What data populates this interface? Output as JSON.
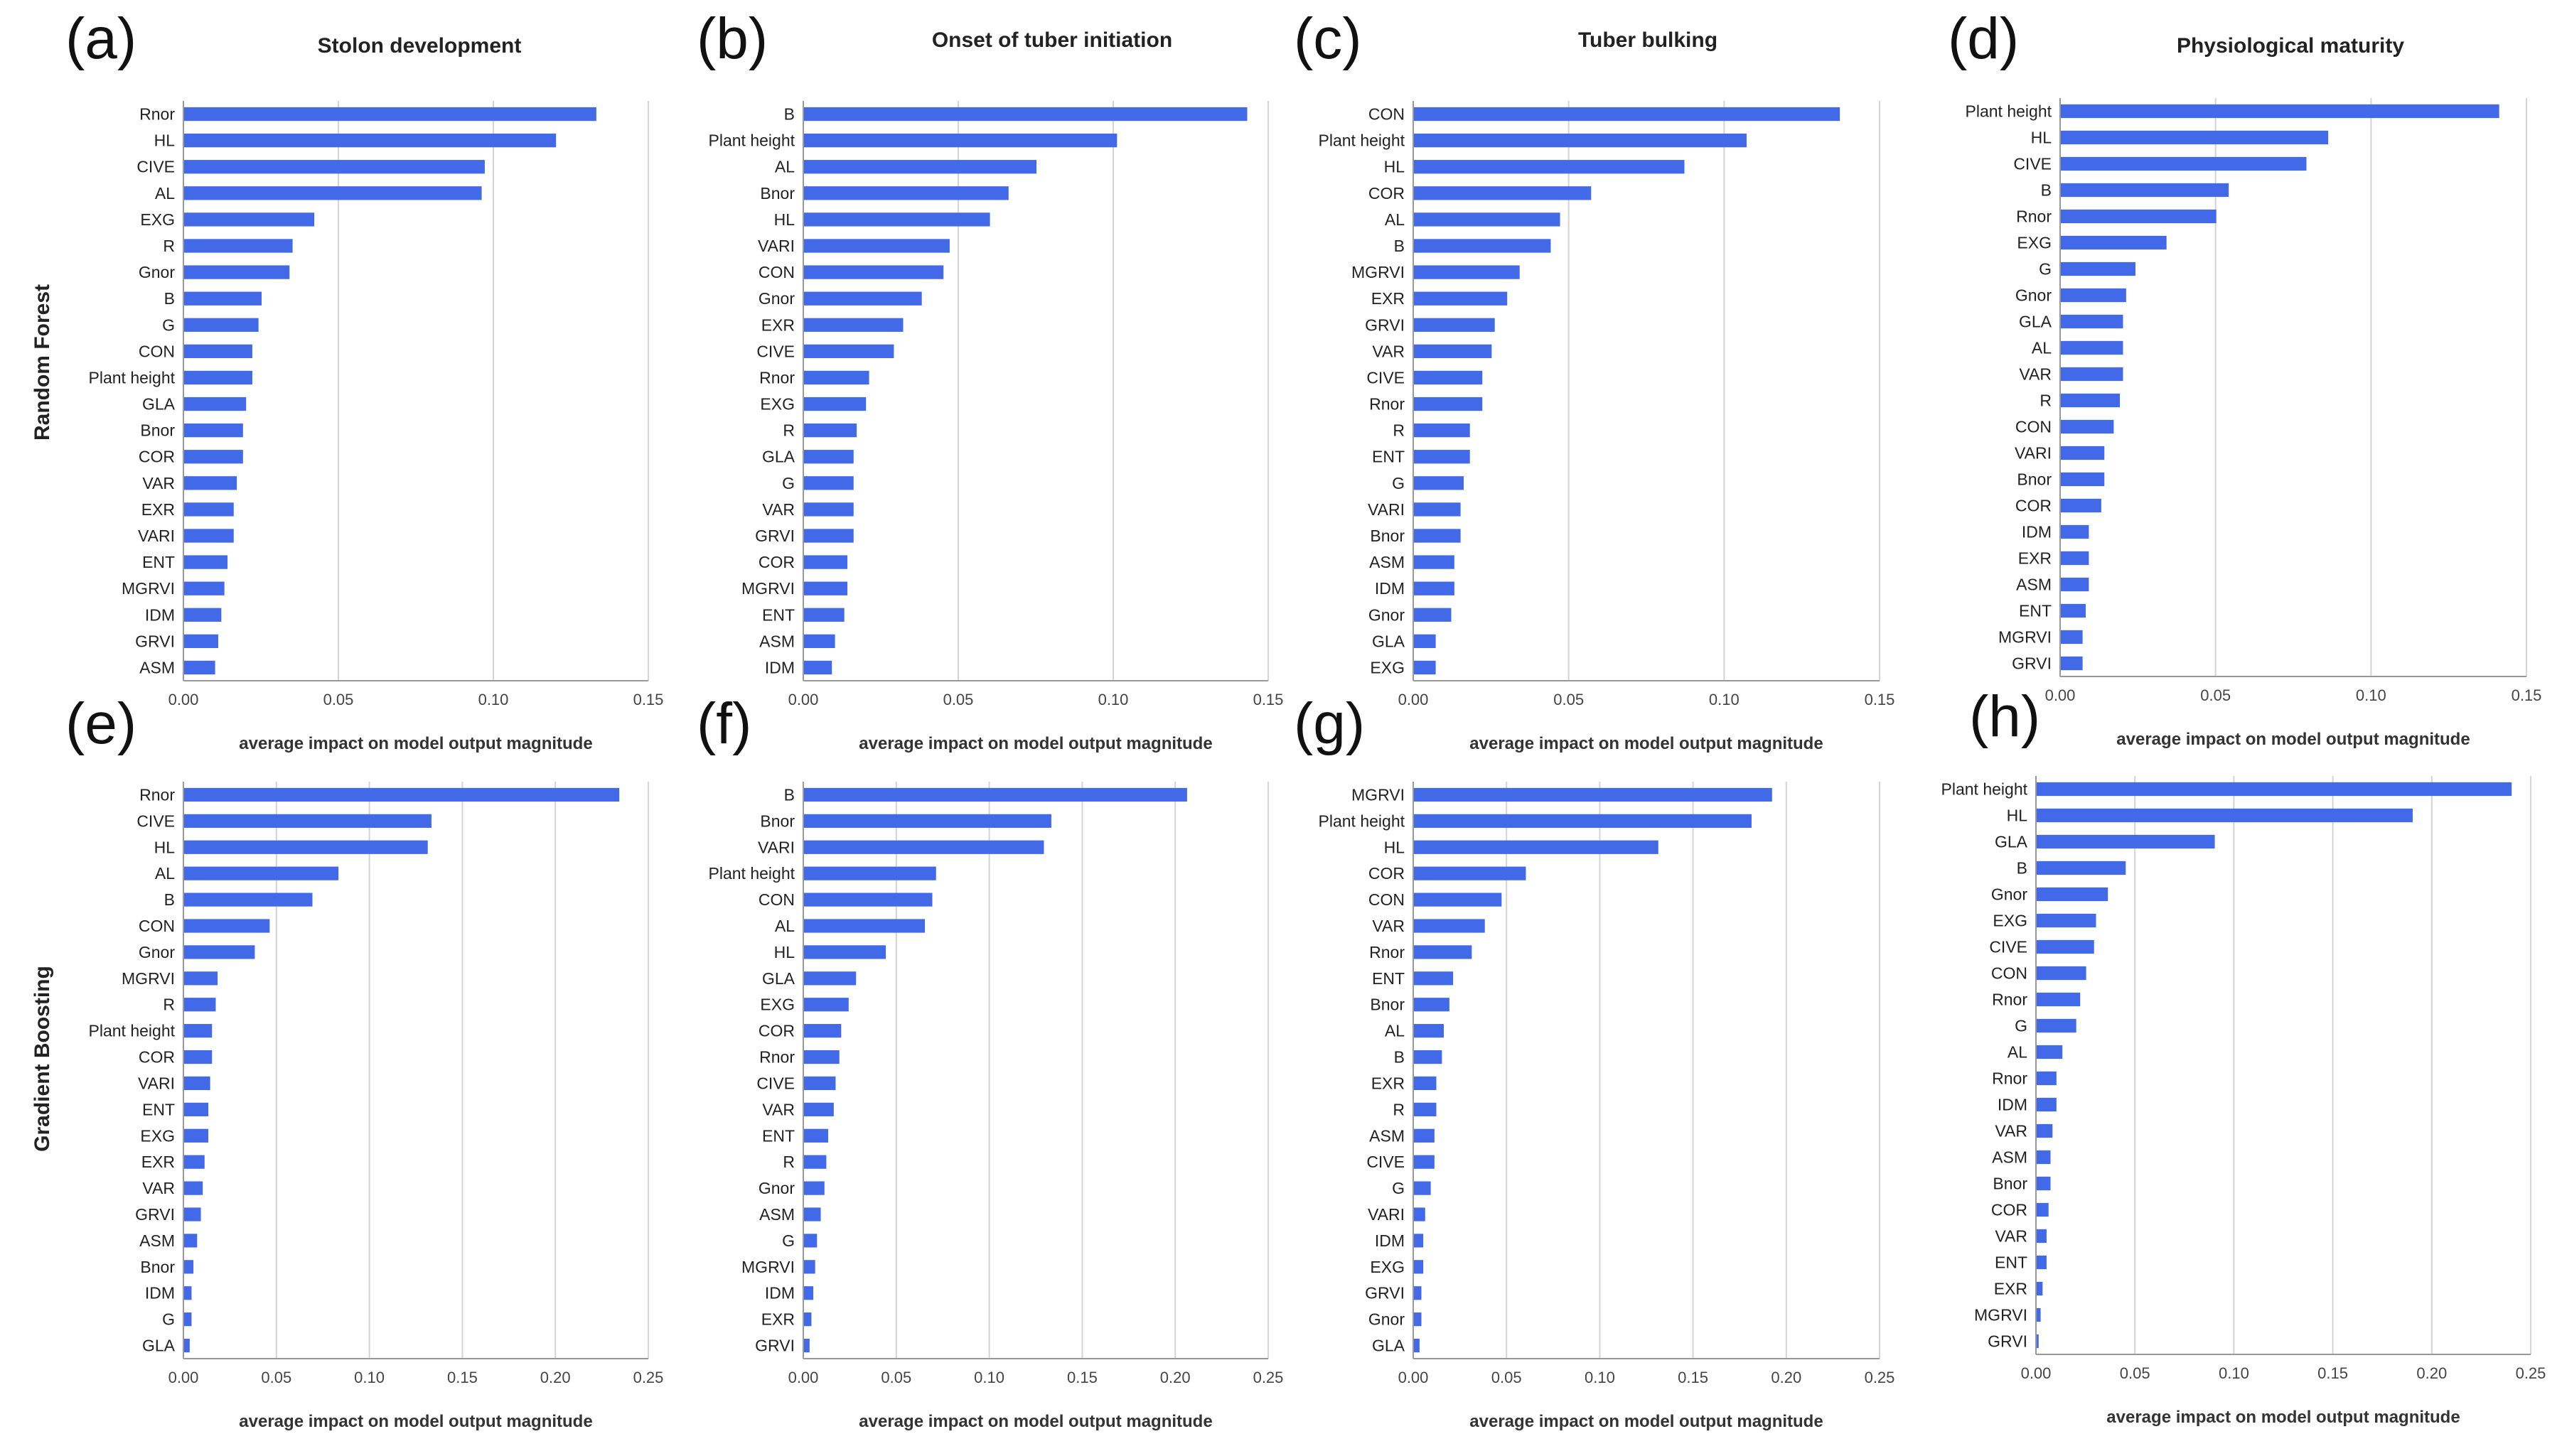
{
  "figure": {
    "row_labels": [
      "Random Forest",
      "Gradient Boosting"
    ],
    "bar_color": "#4169e8",
    "grid_color": "#d4d4d4",
    "axis_color": "#999999"
  },
  "chart_data": [
    {
      "type": "bar",
      "orientation": "horizontal",
      "panel": "(a)",
      "title": "Stolon development",
      "xlabel": "average impact on model output magnitude",
      "xlim": [
        0,
        0.15
      ],
      "xticks": [
        "0.00",
        "0.05",
        "0.10",
        "0.15"
      ],
      "categories": [
        "Rnor",
        "HL",
        "CIVE",
        "AL",
        "EXG",
        "R",
        "Gnor",
        "B",
        "G",
        "CON",
        "Plant height",
        "GLA",
        "Bnor",
        "COR",
        "VAR",
        "EXR",
        "VARI",
        "ENT",
        "MGRVI",
        "IDM",
        "GRVI",
        "ASM"
      ],
      "values": [
        0.133,
        0.12,
        0.097,
        0.096,
        0.042,
        0.035,
        0.034,
        0.025,
        0.024,
        0.022,
        0.022,
        0.02,
        0.019,
        0.019,
        0.017,
        0.016,
        0.016,
        0.014,
        0.013,
        0.012,
        0.011,
        0.01
      ]
    },
    {
      "type": "bar",
      "orientation": "horizontal",
      "panel": "(b)",
      "title": "Onset of tuber initiation",
      "xlabel": "average impact on model output magnitude",
      "xlim": [
        0,
        0.15
      ],
      "xticks": [
        "0.00",
        "0.05",
        "0.10",
        "0.15"
      ],
      "categories": [
        "B",
        "Plant height",
        "AL",
        "Bnor",
        "HL",
        "VARI",
        "CON",
        "Gnor",
        "EXR",
        "CIVE",
        "Rnor",
        "EXG",
        "R",
        "GLA",
        "G",
        "VAR",
        "GRVI",
        "COR",
        "MGRVI",
        "ENT",
        "ASM",
        "IDM"
      ],
      "values": [
        0.143,
        0.101,
        0.075,
        0.066,
        0.06,
        0.047,
        0.045,
        0.038,
        0.032,
        0.029,
        0.021,
        0.02,
        0.017,
        0.016,
        0.016,
        0.016,
        0.016,
        0.014,
        0.014,
        0.013,
        0.01,
        0.009
      ]
    },
    {
      "type": "bar",
      "orientation": "horizontal",
      "panel": "(c)",
      "title": "Tuber bulking",
      "xlabel": "average impact on model output magnitude",
      "xlim": [
        0,
        0.15
      ],
      "xticks": [
        "0.00",
        "0.05",
        "0.10",
        "0.15"
      ],
      "categories": [
        "CON",
        "Plant height",
        "HL",
        "COR",
        "AL",
        "B",
        "MGRVI",
        "EXR",
        "GRVI",
        "VAR",
        "CIVE",
        "Rnor",
        "R",
        "ENT",
        "G",
        "VARI",
        "Bnor",
        "ASM",
        "IDM",
        "Gnor",
        "GLA",
        "EXG"
      ],
      "values": [
        0.137,
        0.107,
        0.087,
        0.057,
        0.047,
        0.044,
        0.034,
        0.03,
        0.026,
        0.025,
        0.022,
        0.022,
        0.018,
        0.018,
        0.016,
        0.015,
        0.015,
        0.013,
        0.013,
        0.012,
        0.007,
        0.007
      ]
    },
    {
      "type": "bar",
      "orientation": "horizontal",
      "panel": "(d)",
      "title": "Physiological maturity",
      "xlabel": "average impact on model output magnitude",
      "xlim": [
        0,
        0.15
      ],
      "xticks": [
        "0.00",
        "0.05",
        "0.10",
        "0.15"
      ],
      "categories": [
        "Plant height",
        "HL",
        "CIVE",
        "B",
        "Rnor",
        "EXG",
        "G",
        "Gnor",
        "GLA",
        "AL",
        "VAR",
        "R",
        "CON",
        "VARI",
        "Bnor",
        "COR",
        "IDM",
        "EXR",
        "ASM",
        "ENT",
        "MGRVI",
        "GRVI"
      ],
      "values": [
        0.141,
        0.086,
        0.079,
        0.054,
        0.05,
        0.034,
        0.024,
        0.021,
        0.02,
        0.02,
        0.02,
        0.019,
        0.017,
        0.014,
        0.014,
        0.013,
        0.009,
        0.009,
        0.009,
        0.008,
        0.007,
        0.007
      ]
    },
    {
      "type": "bar",
      "orientation": "horizontal",
      "panel": "(e)",
      "title": "",
      "xlabel": "average impact on model output magnitude",
      "xlim": [
        0,
        0.25
      ],
      "xticks": [
        "0.00",
        "0.05",
        "0.10",
        "0.15",
        "0.20",
        "0.25"
      ],
      "categories": [
        "Rnor",
        "CIVE",
        "HL",
        "AL",
        "B",
        "CON",
        "Gnor",
        "MGRVI",
        "R",
        "Plant height",
        "COR",
        "VARI",
        "ENT",
        "EXG",
        "EXR",
        "VAR",
        "GRVI",
        "ASM",
        "Bnor",
        "IDM",
        "G",
        "GLA"
      ],
      "values": [
        0.234,
        0.133,
        0.131,
        0.083,
        0.069,
        0.046,
        0.038,
        0.018,
        0.017,
        0.015,
        0.015,
        0.014,
        0.013,
        0.013,
        0.011,
        0.01,
        0.009,
        0.007,
        0.005,
        0.004,
        0.004,
        0.003
      ]
    },
    {
      "type": "bar",
      "orientation": "horizontal",
      "panel": "(f)",
      "title": "",
      "xlabel": "average impact on model output magnitude",
      "xlim": [
        0,
        0.25
      ],
      "xticks": [
        "0.00",
        "0.05",
        "0.10",
        "0.15",
        "0.20",
        "0.25"
      ],
      "categories": [
        "B",
        "Bnor",
        "VARI",
        "Plant height",
        "CON",
        "AL",
        "HL",
        "GLA",
        "EXG",
        "COR",
        "Rnor",
        "CIVE",
        "VAR",
        "ENT",
        "R",
        "Gnor",
        "ASM",
        "G",
        "MGRVI",
        "IDM",
        "EXR",
        "GRVI"
      ],
      "values": [
        0.206,
        0.133,
        0.129,
        0.071,
        0.069,
        0.065,
        0.044,
        0.028,
        0.024,
        0.02,
        0.019,
        0.017,
        0.016,
        0.013,
        0.012,
        0.011,
        0.009,
        0.007,
        0.006,
        0.005,
        0.004,
        0.003
      ]
    },
    {
      "type": "bar",
      "orientation": "horizontal",
      "panel": "(g)",
      "title": "",
      "xlabel": "average impact on model output magnitude",
      "xlim": [
        0,
        0.25
      ],
      "xticks": [
        "0.00",
        "0.05",
        "0.10",
        "0.15",
        "0.20",
        "0.25"
      ],
      "categories": [
        "MGRVI",
        "Plant height",
        "HL",
        "COR",
        "CON",
        "VAR",
        "Rnor",
        "ENT",
        "Bnor",
        "AL",
        "B",
        "EXR",
        "R",
        "ASM",
        "CIVE",
        "G",
        "VARI",
        "IDM",
        "EXG",
        "GRVI",
        "Gnor",
        "GLA"
      ],
      "values": [
        0.192,
        0.181,
        0.131,
        0.06,
        0.047,
        0.038,
        0.031,
        0.021,
        0.019,
        0.016,
        0.015,
        0.012,
        0.012,
        0.011,
        0.011,
        0.009,
        0.006,
        0.005,
        0.005,
        0.004,
        0.004,
        0.003
      ]
    },
    {
      "type": "bar",
      "orientation": "horizontal",
      "panel": "(h)",
      "title": "",
      "xlabel": "average impact on model output magnitude",
      "xlim": [
        0,
        0.25
      ],
      "xticks": [
        "0.00",
        "0.05",
        "0.10",
        "0.15",
        "0.20",
        "0.25"
      ],
      "categories": [
        "Plant height",
        "HL",
        "GLA",
        "B",
        "Gnor",
        "EXG",
        "CIVE",
        "CON",
        "Rnor",
        "G",
        "AL",
        "Rnor",
        "IDM",
        "VAR",
        "ASM",
        "Bnor",
        "COR",
        "VAR",
        "ENT",
        "EXR",
        "MGRVI",
        "GRVI"
      ],
      "values": [
        0.24,
        0.19,
        0.09,
        0.045,
        0.036,
        0.03,
        0.029,
        0.025,
        0.022,
        0.02,
        0.013,
        0.01,
        0.01,
        0.008,
        0.007,
        0.007,
        0.006,
        0.005,
        0.005,
        0.003,
        0.002,
        0.001
      ]
    }
  ]
}
